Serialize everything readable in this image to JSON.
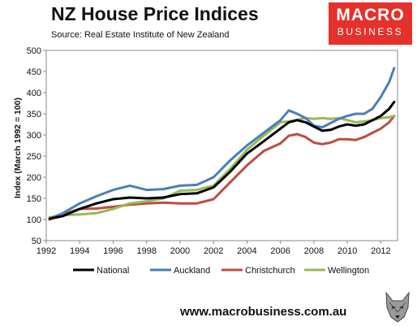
{
  "header": {
    "title": "NZ House Price Indices",
    "subtitle": "Source: Real  Estate Institute of New Zealand"
  },
  "logo": {
    "line1": "MACRO",
    "line2": "BUSINESS"
  },
  "footer": {
    "url": "www.macrobusiness.com.au"
  },
  "colors": {
    "national": "#000000",
    "auckland": "#4a7ebb",
    "christchurch": "#be4b48",
    "wellington": "#98b954",
    "brand": "#e4312b"
  },
  "chart_data": {
    "type": "line",
    "title": "NZ House Price Indices",
    "ylabel": "Index (March 1992 = 100)",
    "xlabel": "",
    "xlim": [
      1992,
      2013
    ],
    "ylim": [
      50,
      500
    ],
    "xticks": [
      "1992",
      "1994",
      "1996",
      "1998",
      "2000",
      "2002",
      "2004",
      "2006",
      "2008",
      "2010",
      "2012"
    ],
    "yticks": [
      "50",
      "100",
      "150",
      "200",
      "250",
      "300",
      "350",
      "400",
      "450",
      "500"
    ],
    "grid": false,
    "legend": "bottom",
    "x": [
      1992.2,
      1993,
      1994,
      1995,
      1996,
      1997,
      1998,
      1999,
      2000,
      2001,
      2002,
      2003,
      2004,
      2005,
      2006,
      2006.5,
      2007,
      2007.5,
      2008,
      2008.5,
      2009,
      2009.5,
      2010,
      2010.5,
      2011,
      2011.5,
      2012,
      2012.5,
      2012.8
    ],
    "series": [
      {
        "name": "National",
        "values": [
          102,
          108,
          125,
          138,
          148,
          152,
          150,
          152,
          160,
          162,
          176,
          213,
          256,
          285,
          315,
          330,
          335,
          330,
          320,
          310,
          312,
          320,
          325,
          322,
          325,
          335,
          345,
          362,
          378
        ]
      },
      {
        "name": "Auckland",
        "values": [
          102,
          115,
          138,
          155,
          170,
          180,
          170,
          172,
          180,
          182,
          200,
          240,
          275,
          305,
          335,
          358,
          350,
          340,
          322,
          318,
          328,
          338,
          345,
          350,
          350,
          362,
          390,
          425,
          458
        ]
      },
      {
        "name": "Christchurch",
        "values": [
          100,
          112,
          125,
          126,
          130,
          135,
          138,
          140,
          138,
          138,
          148,
          188,
          228,
          262,
          280,
          298,
          302,
          295,
          282,
          278,
          282,
          290,
          290,
          288,
          295,
          305,
          315,
          330,
          345
        ]
      },
      {
        "name": "Wellington",
        "values": [
          105,
          110,
          112,
          115,
          125,
          138,
          143,
          150,
          168,
          170,
          180,
          220,
          265,
          298,
          330,
          332,
          336,
          340,
          338,
          340,
          338,
          340,
          335,
          330,
          332,
          335,
          340,
          342,
          345
        ]
      }
    ]
  }
}
